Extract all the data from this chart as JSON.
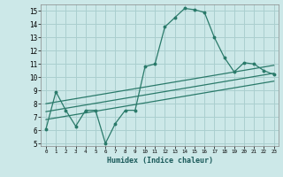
{
  "xlabel": "Humidex (Indice chaleur)",
  "ylabel": "",
  "bg_color": "#cce8e8",
  "grid_color": "#aacfcf",
  "line_color": "#2a7a6a",
  "xlim": [
    -0.5,
    23.5
  ],
  "ylim": [
    4.8,
    15.5
  ],
  "xticks": [
    0,
    1,
    2,
    3,
    4,
    5,
    6,
    7,
    8,
    9,
    10,
    11,
    12,
    13,
    14,
    15,
    16,
    17,
    18,
    19,
    20,
    21,
    22,
    23
  ],
  "yticks": [
    5,
    6,
    7,
    8,
    9,
    10,
    11,
    12,
    13,
    14,
    15
  ],
  "main_x": [
    0,
    1,
    2,
    3,
    4,
    5,
    6,
    7,
    8,
    9,
    10,
    11,
    12,
    13,
    14,
    15,
    16,
    17,
    18,
    19,
    20,
    21,
    22,
    23
  ],
  "main_y": [
    6.1,
    8.9,
    7.5,
    6.3,
    7.5,
    7.5,
    5.0,
    6.5,
    7.5,
    7.5,
    10.8,
    11.0,
    13.8,
    14.5,
    15.2,
    15.1,
    14.9,
    13.0,
    11.5,
    10.4,
    11.1,
    11.0,
    10.5,
    10.2
  ],
  "line2_x": [
    0,
    23
  ],
  "line2_y": [
    8.0,
    10.9
  ],
  "line3_x": [
    0,
    23
  ],
  "line3_y": [
    7.4,
    10.3
  ],
  "line4_x": [
    0,
    23
  ],
  "line4_y": [
    6.8,
    9.7
  ]
}
